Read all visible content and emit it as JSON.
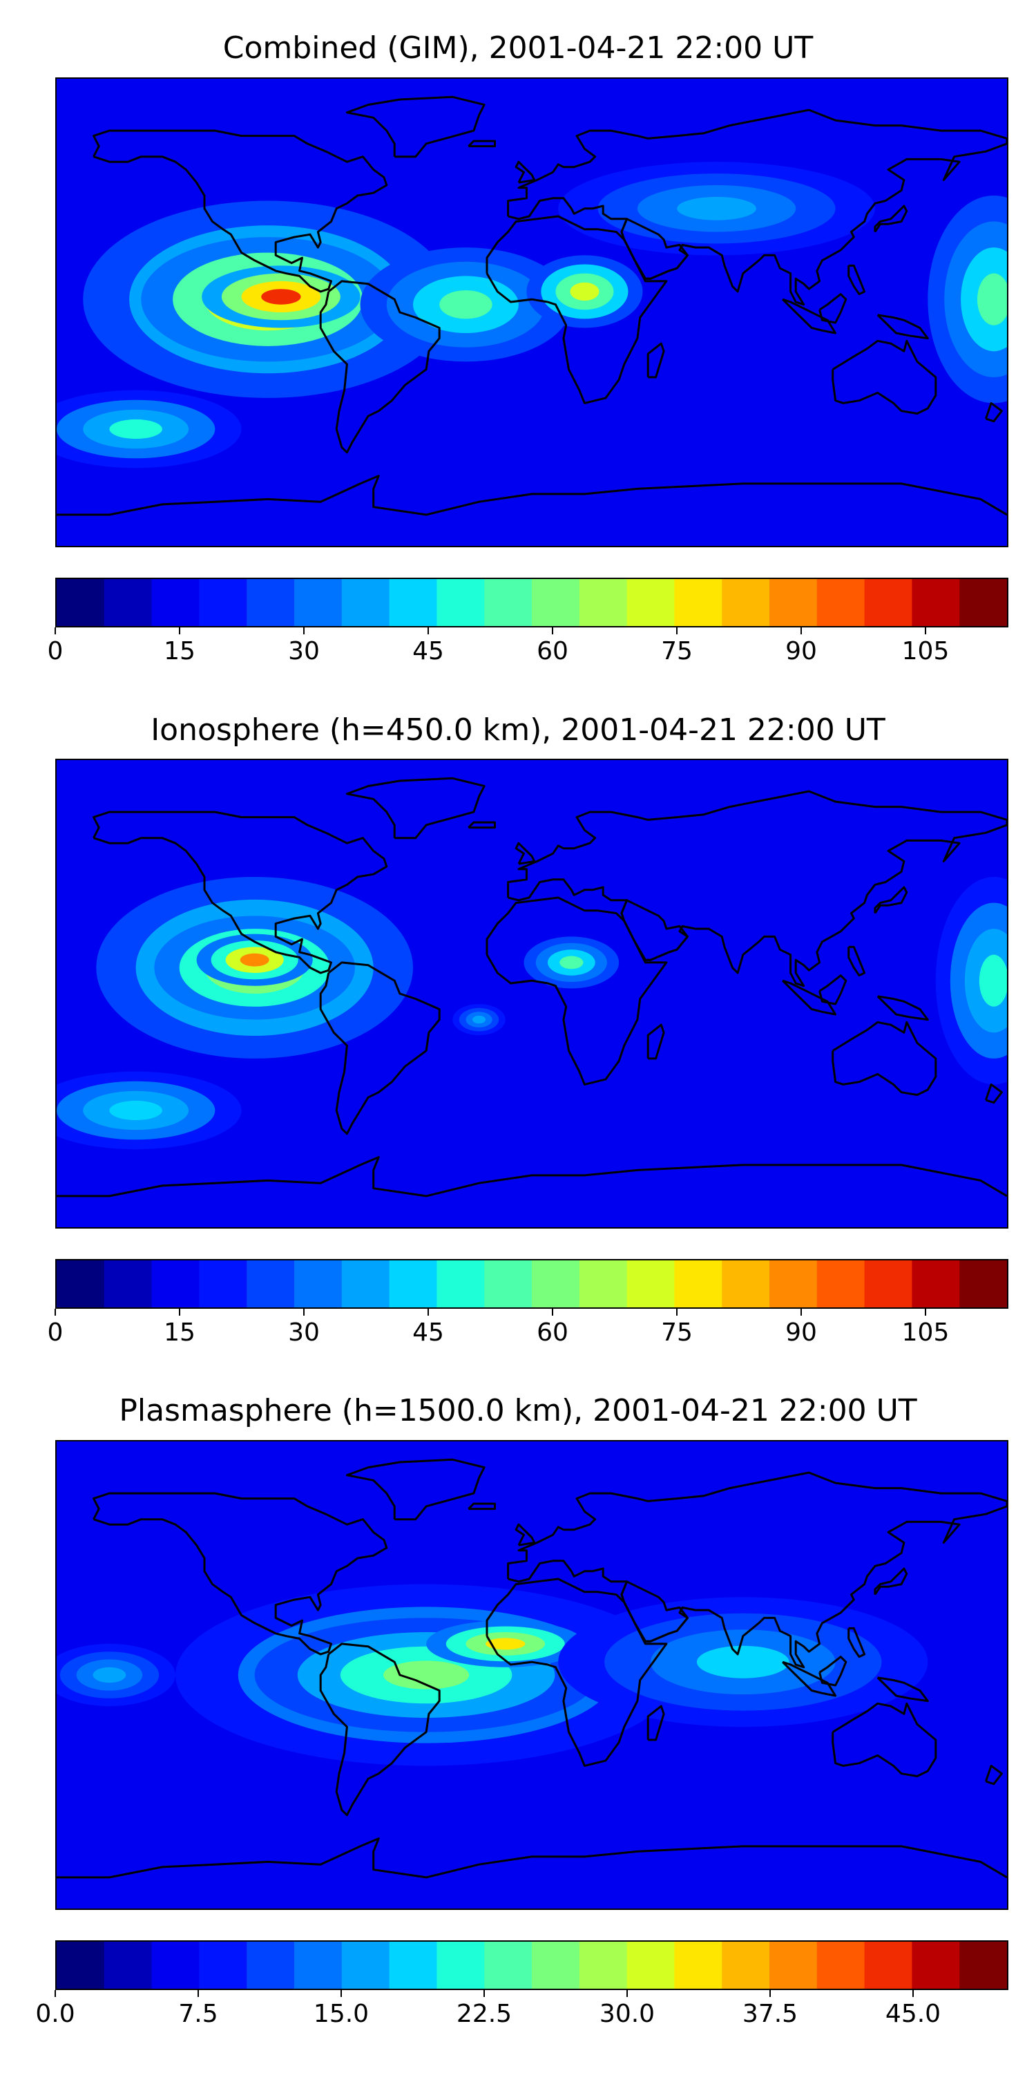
{
  "colors": {
    "ocean_base": "#0a1eff",
    "coastline": "#000000",
    "colorbar": [
      "#00007f",
      "#0000b8",
      "#0000f1",
      "#0014ff",
      "#0044ff",
      "#0074ff",
      "#00a4ff",
      "#00d4ff",
      "#1fffd7",
      "#4dffaa",
      "#7aff7d",
      "#a7ff50",
      "#d4ff23",
      "#ffe600",
      "#ffb800",
      "#ff8900",
      "#ff5a00",
      "#f12c00",
      "#ba0000",
      "#7f0000"
    ]
  },
  "panels": [
    {
      "title": "Combined (GIM), 2001-04-21 22:00 UT",
      "colorbar": {
        "vmin": 0,
        "vmax": 115,
        "ticks": [
          0,
          15,
          30,
          45,
          60,
          75,
          90,
          105
        ],
        "tick_labels": [
          "0",
          "15",
          "30",
          "45",
          "60",
          "75",
          "90",
          "105"
        ]
      },
      "blobs": [
        {
          "lon": -100,
          "lat": 5,
          "rx": 70,
          "ry": 38,
          "level": 0.55
        },
        {
          "lon": -100,
          "lat": 5,
          "rx": 48,
          "ry": 24,
          "level": 0.78
        },
        {
          "lon": -95,
          "lat": 6,
          "rx": 30,
          "ry": 12,
          "level": 0.88
        },
        {
          "lon": -25,
          "lat": 3,
          "rx": 40,
          "ry": 22,
          "level": 0.45
        },
        {
          "lon": 20,
          "lat": 8,
          "rx": 22,
          "ry": 14,
          "level": 0.62
        },
        {
          "lon": 175,
          "lat": 5,
          "rx": 25,
          "ry": 40,
          "level": 0.45
        },
        {
          "lon": -150,
          "lat": -45,
          "rx": 40,
          "ry": 15,
          "level": 0.4
        },
        {
          "lon": 70,
          "lat": 40,
          "rx": 60,
          "ry": 18,
          "level": 0.3
        }
      ]
    },
    {
      "title": "Ionosphere  (h=450.0 km), 2001-04-21 22:00 UT",
      "colorbar": {
        "vmin": 0,
        "vmax": 115,
        "ticks": [
          0,
          15,
          30,
          45,
          60,
          75,
          90,
          105
        ],
        "tick_labels": [
          "0",
          "15",
          "30",
          "45",
          "60",
          "75",
          "90",
          "105"
        ]
      },
      "blobs": [
        {
          "lon": -105,
          "lat": 10,
          "rx": 60,
          "ry": 35,
          "level": 0.5
        },
        {
          "lon": -105,
          "lat": 10,
          "rx": 38,
          "ry": 20,
          "level": 0.68
        },
        {
          "lon": -105,
          "lat": 13,
          "rx": 22,
          "ry": 10,
          "level": 0.76
        },
        {
          "lon": 15,
          "lat": 12,
          "rx": 18,
          "ry": 10,
          "level": 0.45
        },
        {
          "lon": 175,
          "lat": 5,
          "rx": 22,
          "ry": 40,
          "level": 0.42
        },
        {
          "lon": -150,
          "lat": -45,
          "rx": 40,
          "ry": 15,
          "level": 0.38
        },
        {
          "lon": -20,
          "lat": -10,
          "rx": 10,
          "ry": 6,
          "level": 0.3
        }
      ]
    },
    {
      "title": "Plasmasphere (h=1500.0 km), 2001-04-21 22:00 UT",
      "colorbar": {
        "vmin": 0,
        "vmax": 50,
        "ticks": [
          0,
          7.5,
          15,
          22.5,
          30,
          37.5,
          45
        ],
        "tick_labels": [
          "0.0",
          "7.5",
          "15.0",
          "22.5",
          "30.0",
          "37.5",
          "45.0"
        ]
      },
      "blobs": [
        {
          "lon": -40,
          "lat": 0,
          "rx": 95,
          "ry": 35,
          "level": 0.4
        },
        {
          "lon": -40,
          "lat": 0,
          "rx": 65,
          "ry": 22,
          "level": 0.52
        },
        {
          "lon": -10,
          "lat": 12,
          "rx": 30,
          "ry": 9,
          "level": 0.68
        },
        {
          "lon": 80,
          "lat": 5,
          "rx": 70,
          "ry": 25,
          "level": 0.35
        },
        {
          "lon": -160,
          "lat": 0,
          "rx": 25,
          "ry": 12,
          "level": 0.3
        }
      ]
    }
  ],
  "coastlines": {
    "north_america": [
      [
        -166,
        60
      ],
      [
        -160,
        58
      ],
      [
        -153,
        58
      ],
      [
        -148,
        60
      ],
      [
        -140,
        60
      ],
      [
        -135,
        58
      ],
      [
        -131,
        55
      ],
      [
        -127,
        50
      ],
      [
        -124,
        45
      ],
      [
        -124,
        40
      ],
      [
        -121,
        35
      ],
      [
        -117,
        32
      ],
      [
        -114,
        30
      ],
      [
        -110,
        23
      ],
      [
        -105,
        20
      ],
      [
        -97,
        16
      ],
      [
        -93,
        15
      ],
      [
        -88,
        14
      ],
      [
        -84,
        10
      ],
      [
        -80,
        8
      ],
      [
        -77,
        9
      ],
      [
        -76,
        12
      ],
      [
        -84,
        15
      ],
      [
        -88,
        16
      ],
      [
        -87,
        21
      ],
      [
        -91,
        19
      ],
      [
        -97,
        22
      ],
      [
        -97,
        27
      ],
      [
        -90,
        29
      ],
      [
        -84,
        30
      ],
      [
        -81,
        25
      ],
      [
        -80,
        27
      ],
      [
        -81,
        31
      ],
      [
        -76,
        35
      ],
      [
        -74,
        40
      ],
      [
        -70,
        42
      ],
      [
        -66,
        45
      ],
      [
        -60,
        46
      ],
      [
        -55,
        49
      ],
      [
        -56,
        52
      ],
      [
        -60,
        55
      ],
      [
        -64,
        60
      ],
      [
        -70,
        58
      ],
      [
        -78,
        62
      ],
      [
        -85,
        65
      ],
      [
        -90,
        68
      ],
      [
        -100,
        68
      ],
      [
        -110,
        68
      ],
      [
        -120,
        70
      ],
      [
        -130,
        70
      ],
      [
        -140,
        70
      ],
      [
        -150,
        70
      ],
      [
        -160,
        70
      ],
      [
        -166,
        68
      ],
      [
        -164,
        64
      ],
      [
        -166,
        60
      ]
    ],
    "greenland": [
      [
        -52,
        60
      ],
      [
        -44,
        60
      ],
      [
        -40,
        65
      ],
      [
        -22,
        70
      ],
      [
        -20,
        76
      ],
      [
        -18,
        80
      ],
      [
        -30,
        83
      ],
      [
        -50,
        82
      ],
      [
        -62,
        80
      ],
      [
        -70,
        77
      ],
      [
        -60,
        75
      ],
      [
        -55,
        70
      ],
      [
        -52,
        65
      ],
      [
        -52,
        60
      ]
    ],
    "south_america": [
      [
        -77,
        8
      ],
      [
        -72,
        12
      ],
      [
        -62,
        11
      ],
      [
        -52,
        5
      ],
      [
        -50,
        0
      ],
      [
        -44,
        -2
      ],
      [
        -35,
        -6
      ],
      [
        -35,
        -10
      ],
      [
        -39,
        -15
      ],
      [
        -40,
        -22
      ],
      [
        -48,
        -28
      ],
      [
        -53,
        -34
      ],
      [
        -58,
        -38
      ],
      [
        -62,
        -40
      ],
      [
        -65,
        -45
      ],
      [
        -68,
        -50
      ],
      [
        -70,
        -54
      ],
      [
        -72,
        -52
      ],
      [
        -74,
        -45
      ],
      [
        -73,
        -38
      ],
      [
        -71,
        -30
      ],
      [
        -70,
        -20
      ],
      [
        -75,
        -15
      ],
      [
        -80,
        -6
      ],
      [
        -80,
        0
      ],
      [
        -78,
        3
      ],
      [
        -77,
        8
      ]
    ],
    "africa": [
      [
        -17,
        15
      ],
      [
        -17,
        21
      ],
      [
        -13,
        27
      ],
      [
        -9,
        31
      ],
      [
        -6,
        35
      ],
      [
        10,
        37
      ],
      [
        20,
        32
      ],
      [
        25,
        32
      ],
      [
        32,
        31
      ],
      [
        35,
        28
      ],
      [
        40,
        18
      ],
      [
        43,
        12
      ],
      [
        51,
        12
      ],
      [
        46,
        5
      ],
      [
        41,
        -2
      ],
      [
        40,
        -10
      ],
      [
        35,
        -20
      ],
      [
        33,
        -26
      ],
      [
        28,
        -33
      ],
      [
        20,
        -35
      ],
      [
        18,
        -30
      ],
      [
        14,
        -22
      ],
      [
        12,
        -10
      ],
      [
        13,
        -5
      ],
      [
        9,
        3
      ],
      [
        6,
        4
      ],
      [
        0,
        5
      ],
      [
        -8,
        4
      ],
      [
        -13,
        8
      ],
      [
        -17,
        15
      ]
    ],
    "eurasia": [
      [
        -9,
        37
      ],
      [
        -9,
        43
      ],
      [
        -2,
        44
      ],
      [
        -2,
        48
      ],
      [
        -5,
        48
      ],
      [
        2,
        51
      ],
      [
        8,
        54
      ],
      [
        10,
        57
      ],
      [
        12,
        56
      ],
      [
        16,
        56
      ],
      [
        22,
        58
      ],
      [
        24,
        60
      ],
      [
        20,
        63
      ],
      [
        17,
        68
      ],
      [
        22,
        70
      ],
      [
        30,
        70
      ],
      [
        40,
        68
      ],
      [
        44,
        67
      ],
      [
        55,
        68
      ],
      [
        65,
        69
      ],
      [
        75,
        72
      ],
      [
        80,
        73
      ],
      [
        95,
        76
      ],
      [
        105,
        78
      ],
      [
        115,
        74
      ],
      [
        130,
        72
      ],
      [
        140,
        72
      ],
      [
        155,
        70
      ],
      [
        170,
        70
      ],
      [
        180,
        67
      ],
      [
        180,
        65
      ],
      [
        172,
        62
      ],
      [
        160,
        60
      ],
      [
        156,
        51
      ],
      [
        162,
        58
      ],
      [
        155,
        59
      ],
      [
        142,
        59
      ],
      [
        135,
        55
      ],
      [
        141,
        51
      ],
      [
        140,
        47
      ],
      [
        134,
        43
      ],
      [
        130,
        42
      ],
      [
        127,
        38
      ],
      [
        126,
        35
      ],
      [
        121,
        31
      ],
      [
        122,
        29
      ],
      [
        117,
        24
      ],
      [
        110,
        20
      ],
      [
        108,
        16
      ],
      [
        109,
        12
      ],
      [
        105,
        9
      ],
      [
        103,
        11
      ],
      [
        100,
        13
      ],
      [
        100,
        8
      ],
      [
        103,
        3
      ],
      [
        100,
        4
      ],
      [
        98,
        8
      ],
      [
        98,
        15
      ],
      [
        94,
        17
      ],
      [
        92,
        22
      ],
      [
        88,
        22
      ],
      [
        86,
        20
      ],
      [
        80,
        15
      ],
      [
        78,
        8
      ],
      [
        76,
        10
      ],
      [
        73,
        18
      ],
      [
        72,
        22
      ],
      [
        67,
        25
      ],
      [
        62,
        25
      ],
      [
        57,
        26
      ],
      [
        56,
        24
      ],
      [
        59,
        22
      ],
      [
        55,
        17
      ],
      [
        52,
        16
      ],
      [
        45,
        13
      ],
      [
        43,
        13
      ],
      [
        39,
        20
      ],
      [
        35,
        28
      ],
      [
        34,
        31
      ],
      [
        36,
        36
      ],
      [
        30,
        36
      ],
      [
        27,
        38
      ],
      [
        27,
        41
      ],
      [
        23,
        40
      ],
      [
        20,
        40
      ],
      [
        16,
        38
      ],
      [
        15,
        40
      ],
      [
        12,
        44
      ],
      [
        8,
        44
      ],
      [
        3,
        43
      ],
      [
        -1,
        37
      ],
      [
        -5,
        36
      ],
      [
        -9,
        37
      ]
    ],
    "arabia_link": [
      [
        35,
        28
      ],
      [
        39,
        20
      ],
      [
        43,
        13
      ],
      [
        45,
        13
      ],
      [
        52,
        16
      ],
      [
        55,
        17
      ],
      [
        59,
        22
      ],
      [
        56,
        26
      ],
      [
        51,
        25
      ],
      [
        50,
        28
      ],
      [
        48,
        30
      ],
      [
        44,
        32
      ],
      [
        36,
        36
      ],
      [
        34,
        31
      ],
      [
        35,
        28
      ]
    ],
    "australia": [
      [
        114,
        -22
      ],
      [
        114,
        -26
      ],
      [
        115,
        -34
      ],
      [
        118,
        -35
      ],
      [
        124,
        -34
      ],
      [
        131,
        -31
      ],
      [
        137,
        -35
      ],
      [
        140,
        -38
      ],
      [
        146,
        -39
      ],
      [
        150,
        -37
      ],
      [
        153,
        -32
      ],
      [
        153,
        -25
      ],
      [
        146,
        -19
      ],
      [
        142,
        -11
      ],
      [
        141,
        -15
      ],
      [
        136,
        -12
      ],
      [
        131,
        -11
      ],
      [
        127,
        -14
      ],
      [
        122,
        -17
      ],
      [
        114,
        -22
      ]
    ],
    "antarctica": [
      [
        -180,
        -78
      ],
      [
        -160,
        -78
      ],
      [
        -150,
        -76
      ],
      [
        -140,
        -74
      ],
      [
        -120,
        -73
      ],
      [
        -100,
        -72
      ],
      [
        -80,
        -73
      ],
      [
        -65,
        -66
      ],
      [
        -58,
        -63
      ],
      [
        -60,
        -68
      ],
      [
        -60,
        -75
      ],
      [
        -40,
        -78
      ],
      [
        -20,
        -73
      ],
      [
        0,
        -70
      ],
      [
        20,
        -70
      ],
      [
        40,
        -68
      ],
      [
        60,
        -67
      ],
      [
        80,
        -66
      ],
      [
        100,
        -66
      ],
      [
        120,
        -66
      ],
      [
        140,
        -66
      ],
      [
        160,
        -70
      ],
      [
        170,
        -72
      ],
      [
        180,
        -78
      ]
    ],
    "uk": [
      [
        -5,
        50
      ],
      [
        1,
        51
      ],
      [
        0,
        53
      ],
      [
        -3,
        56
      ],
      [
        -5,
        58
      ],
      [
        -6,
        56
      ],
      [
        -3,
        54
      ],
      [
        -5,
        50
      ]
    ],
    "japan": [
      [
        130,
        31
      ],
      [
        132,
        34
      ],
      [
        135,
        34
      ],
      [
        140,
        35
      ],
      [
        142,
        39
      ],
      [
        141,
        41
      ],
      [
        140,
        40
      ],
      [
        136,
        36
      ],
      [
        132,
        35
      ],
      [
        130,
        33
      ],
      [
        130,
        31
      ]
    ],
    "madagascar": [
      [
        44,
        -25
      ],
      [
        47,
        -25
      ],
      [
        50,
        -15
      ],
      [
        49,
        -12
      ],
      [
        44,
        -16
      ],
      [
        44,
        -25
      ]
    ],
    "new_zealand": [
      [
        172,
        -41
      ],
      [
        175,
        -42
      ],
      [
        178,
        -38
      ],
      [
        174,
        -35
      ],
      [
        172,
        -41
      ]
    ],
    "iceland": [
      [
        -24,
        64
      ],
      [
        -14,
        64
      ],
      [
        -14,
        66
      ],
      [
        -22,
        66
      ],
      [
        -24,
        64
      ]
    ],
    "indonesia": [
      [
        95,
        5
      ],
      [
        100,
        0
      ],
      [
        106,
        -6
      ],
      [
        110,
        -7
      ],
      [
        115,
        -8
      ],
      [
        112,
        -3
      ],
      [
        108,
        -1
      ],
      [
        104,
        1
      ],
      [
        98,
        4
      ],
      [
        95,
        5
      ]
    ],
    "borneo": [
      [
        109,
        1
      ],
      [
        112,
        3
      ],
      [
        117,
        7
      ],
      [
        119,
        5
      ],
      [
        117,
        0
      ],
      [
        115,
        -4
      ],
      [
        110,
        -3
      ],
      [
        109,
        1
      ]
    ],
    "new_guinea": [
      [
        131,
        -1
      ],
      [
        137,
        -2
      ],
      [
        141,
        -3
      ],
      [
        147,
        -6
      ],
      [
        150,
        -10
      ],
      [
        143,
        -9
      ],
      [
        138,
        -8
      ],
      [
        134,
        -4
      ],
      [
        131,
        -1
      ]
    ],
    "philippines": [
      [
        120,
        18
      ],
      [
        122,
        18
      ],
      [
        124,
        13
      ],
      [
        126,
        8
      ],
      [
        124,
        7
      ],
      [
        122,
        10
      ],
      [
        120,
        14
      ],
      [
        120,
        18
      ]
    ]
  }
}
